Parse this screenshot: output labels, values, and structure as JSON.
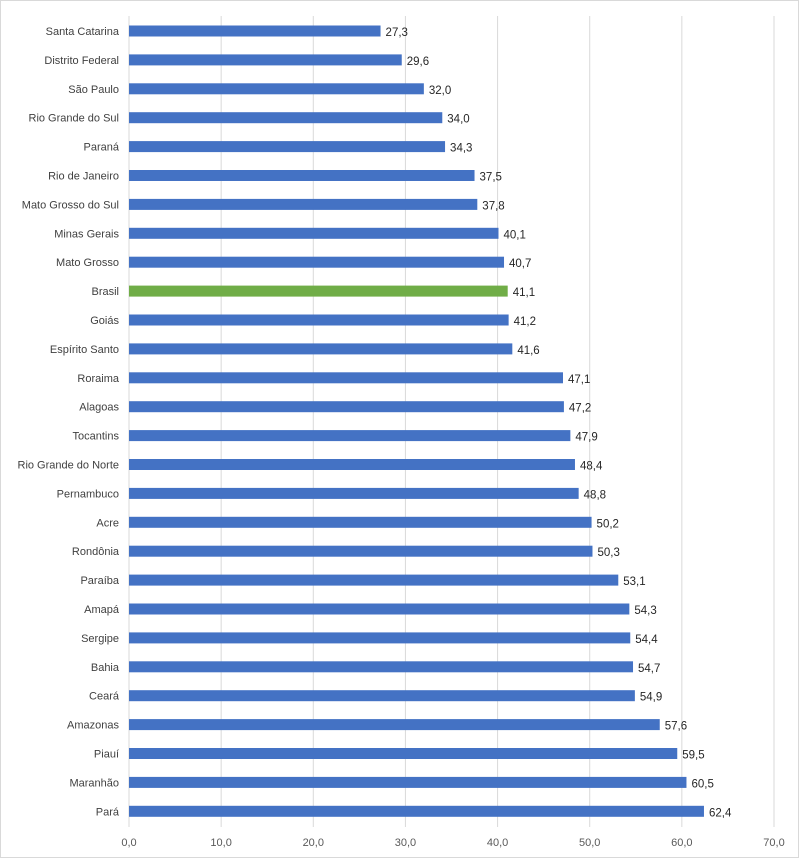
{
  "chart_data": {
    "type": "bar",
    "orientation": "horizontal",
    "title": "",
    "xlabel": "",
    "ylabel": "",
    "xlim": [
      0,
      70
    ],
    "x_ticks": [
      "0,0",
      "10,0",
      "20,0",
      "30,0",
      "40,0",
      "50,0",
      "60,0",
      "70,0"
    ],
    "grid": true,
    "legend": "none",
    "bar_color": "#4472C4",
    "highlight_color": "#70AD47",
    "highlight_category": "Brasil",
    "categories": [
      "Santa Catarina",
      "Distrito Federal",
      "São Paulo",
      "Rio Grande do Sul",
      "Paraná",
      "Rio de Janeiro",
      "Mato Grosso do Sul",
      "Minas Gerais",
      "Mato Grosso",
      "Brasil",
      "Goiás",
      "Espírito Santo",
      "Roraima",
      "Alagoas",
      "Tocantins",
      "Rio Grande do Norte",
      "Pernambuco",
      "Acre",
      "Rondônia",
      "Paraíba",
      "Amapá",
      "Sergipe",
      "Bahia",
      "Ceará",
      "Amazonas",
      "Piauí",
      "Maranhão",
      "Pará"
    ],
    "values": [
      27.3,
      29.6,
      32.0,
      34.0,
      34.3,
      37.5,
      37.8,
      40.1,
      40.7,
      41.1,
      41.2,
      41.6,
      47.1,
      47.2,
      47.9,
      48.4,
      48.8,
      50.2,
      50.3,
      53.1,
      54.3,
      54.4,
      54.7,
      54.9,
      57.6,
      59.5,
      60.5,
      62.4
    ],
    "value_labels": [
      "27,3",
      "29,6",
      "32,0",
      "34,0",
      "34,3",
      "37,5",
      "37,8",
      "40,1",
      "40,7",
      "41,1",
      "41,2",
      "41,6",
      "47,1",
      "47,2",
      "47,9",
      "48,4",
      "48,8",
      "50,2",
      "50,3",
      "53,1",
      "54,3",
      "54,4",
      "54,7",
      "54,9",
      "57,6",
      "59,5",
      "60,5",
      "62,4"
    ]
  }
}
